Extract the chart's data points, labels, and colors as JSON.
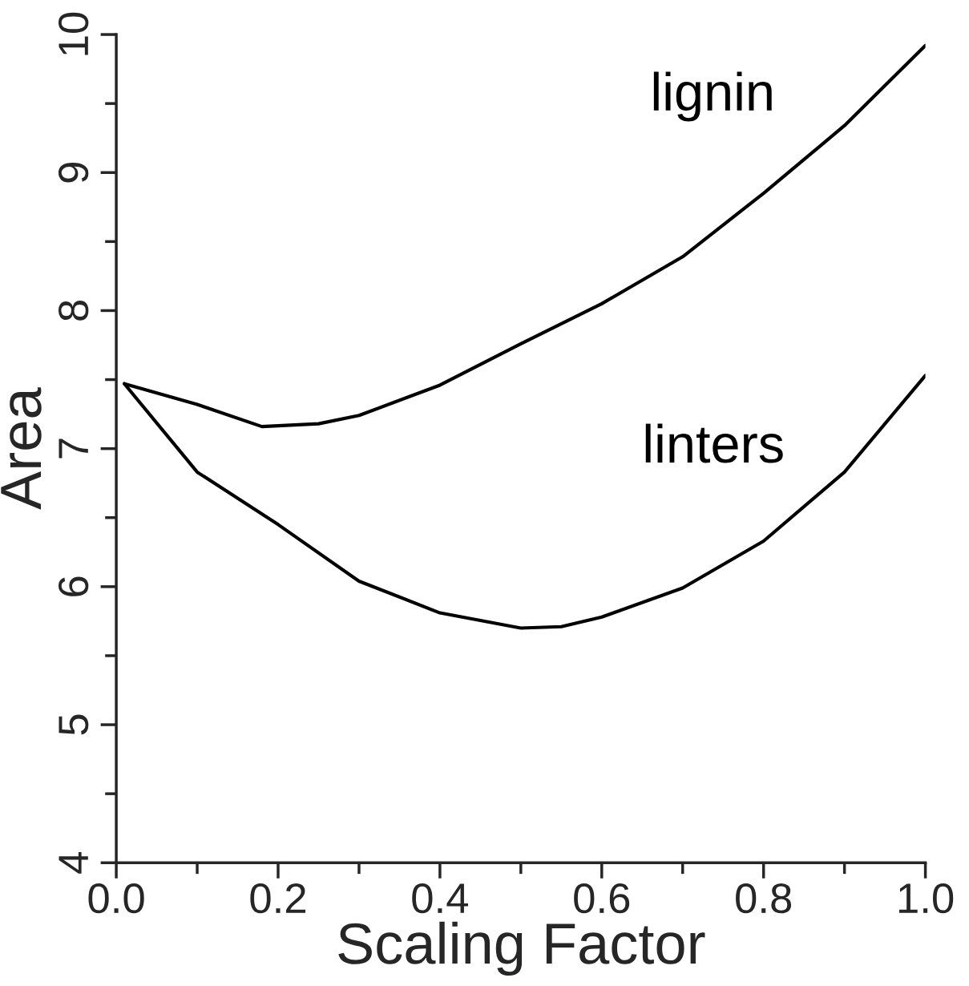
{
  "chart_data": {
    "type": "line",
    "xlabel": "Scaling Factor",
    "ylabel": "Area",
    "xlim": [
      0.0,
      1.0
    ],
    "ylim": [
      4,
      10
    ],
    "xticks": [
      {
        "value": 0,
        "label": "0.0"
      },
      {
        "value": 0.2,
        "label": "0.2"
      },
      {
        "value": 0.4,
        "label": "0.4"
      },
      {
        "value": 0.6,
        "label": "0.6"
      },
      {
        "value": 0.8,
        "label": "0.8"
      },
      {
        "value": 1,
        "label": "1.0"
      }
    ],
    "yticks": [
      4,
      5,
      6,
      7,
      8,
      9,
      10
    ],
    "grid": false,
    "legend": false,
    "marker": "none",
    "line_style": "solid",
    "series": [
      {
        "name": "lignin",
        "color": "#000000",
        "x": [
          0.01,
          0.1,
          0.18,
          0.25,
          0.3,
          0.4,
          0.45,
          0.5,
          0.6,
          0.7,
          0.8,
          0.9,
          1.0
        ],
        "values": [
          7.47,
          7.32,
          7.16,
          7.18,
          7.24,
          7.46,
          7.61,
          7.76,
          8.05,
          8.39,
          8.85,
          9.34,
          9.92
        ]
      },
      {
        "name": "linters",
        "color": "#000000",
        "x": [
          0.01,
          0.1,
          0.2,
          0.3,
          0.4,
          0.5,
          0.55,
          0.6,
          0.7,
          0.8,
          0.9,
          1.0
        ],
        "values": [
          7.47,
          6.83,
          6.45,
          6.04,
          5.81,
          5.7,
          5.71,
          5.78,
          5.99,
          6.33,
          6.83,
          7.53
        ]
      }
    ]
  }
}
